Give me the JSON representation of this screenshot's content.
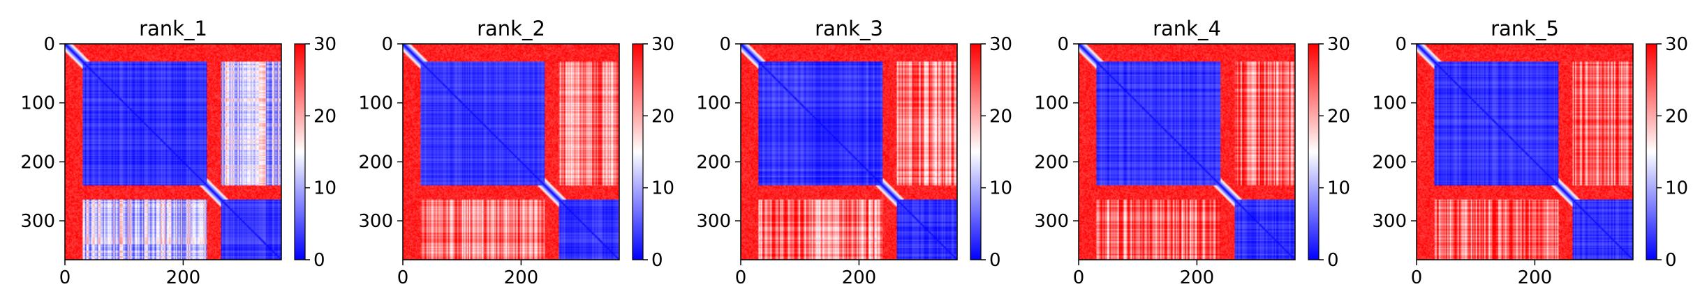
{
  "chart_data": [
    {
      "type": "heatmap",
      "title": "rank_1",
      "x_ticks": [
        0,
        200
      ],
      "y_ticks": [
        0,
        100,
        200,
        300
      ],
      "xlim": [
        0,
        366
      ],
      "ylim": [
        366,
        0
      ],
      "colorbar": {
        "min": 0,
        "max": 30,
        "ticks": [
          0,
          10,
          20,
          30
        ],
        "colormap": "bwr"
      },
      "structure": {
        "n": 366,
        "domain_boundaries": [
          30,
          240,
          265,
          366
        ],
        "domain_blocks": [
          {
            "start": 30,
            "end": 240,
            "value": 3
          },
          {
            "start": 265,
            "end": 366,
            "value": 3
          }
        ],
        "inter_domain_value": 12,
        "background_value": 30,
        "diagonal_value": 0
      }
    },
    {
      "type": "heatmap",
      "title": "rank_2",
      "x_ticks": [
        0,
        200
      ],
      "y_ticks": [
        0,
        100,
        200,
        300
      ],
      "xlim": [
        0,
        366
      ],
      "ylim": [
        366,
        0
      ],
      "colorbar": {
        "min": 0,
        "max": 30,
        "ticks": [
          0,
          10,
          20,
          30
        ],
        "colormap": "bwr"
      },
      "structure": {
        "n": 366,
        "domain_boundaries": [
          30,
          240,
          265,
          366
        ],
        "domain_blocks": [
          {
            "start": 30,
            "end": 240,
            "value": 3
          },
          {
            "start": 265,
            "end": 366,
            "value": 3
          }
        ],
        "inter_domain_value": 22,
        "background_value": 30,
        "diagonal_value": 0
      }
    },
    {
      "type": "heatmap",
      "title": "rank_3",
      "x_ticks": [
        0,
        200
      ],
      "y_ticks": [
        0,
        100,
        200,
        300
      ],
      "xlim": [
        0,
        366
      ],
      "ylim": [
        366,
        0
      ],
      "colorbar": {
        "min": 0,
        "max": 30,
        "ticks": [
          0,
          10,
          20,
          30
        ],
        "colormap": "bwr"
      },
      "structure": {
        "n": 366,
        "domain_boundaries": [
          30,
          240,
          265,
          366
        ],
        "domain_blocks": [
          {
            "start": 30,
            "end": 240,
            "value": 3
          },
          {
            "start": 265,
            "end": 366,
            "value": 3
          }
        ],
        "inter_domain_value": 23,
        "background_value": 30,
        "diagonal_value": 0
      }
    },
    {
      "type": "heatmap",
      "title": "rank_4",
      "x_ticks": [
        0,
        200
      ],
      "y_ticks": [
        0,
        100,
        200,
        300
      ],
      "xlim": [
        0,
        366
      ],
      "ylim": [
        366,
        0
      ],
      "colorbar": {
        "min": 0,
        "max": 30,
        "ticks": [
          0,
          10,
          20,
          30
        ],
        "colormap": "bwr"
      },
      "structure": {
        "n": 366,
        "domain_boundaries": [
          30,
          240,
          265,
          366
        ],
        "domain_blocks": [
          {
            "start": 30,
            "end": 240,
            "value": 3
          },
          {
            "start": 265,
            "end": 366,
            "value": 3
          }
        ],
        "inter_domain_value": 24,
        "background_value": 30,
        "diagonal_value": 0
      }
    },
    {
      "type": "heatmap",
      "title": "rank_5",
      "x_ticks": [
        0,
        200
      ],
      "y_ticks": [
        0,
        100,
        200,
        300
      ],
      "xlim": [
        0,
        366
      ],
      "ylim": [
        366,
        0
      ],
      "colorbar": {
        "min": 0,
        "max": 30,
        "ticks": [
          0,
          10,
          20,
          30
        ],
        "colormap": "bwr"
      },
      "structure": {
        "n": 366,
        "domain_boundaries": [
          30,
          240,
          265,
          366
        ],
        "domain_blocks": [
          {
            "start": 30,
            "end": 240,
            "value": 3
          },
          {
            "start": 265,
            "end": 366,
            "value": 3
          }
        ],
        "inter_domain_value": 24,
        "background_value": 30,
        "diagonal_value": 0
      }
    }
  ]
}
